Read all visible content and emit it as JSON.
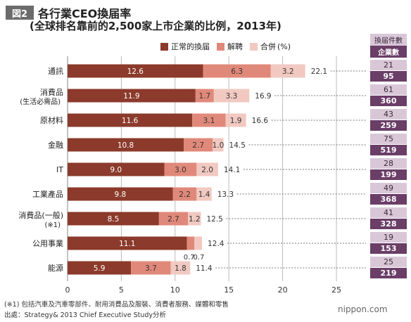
{
  "figure": {
    "badge": "図2",
    "title": "各行業CEO換届率",
    "subtitle": "(全球排名靠前的2,500家上市企業的比例，2013年)"
  },
  "legend": {
    "items": [
      "正常的換届",
      "解聘",
      "合併"
    ],
    "unit": "(%)"
  },
  "side_header": {
    "line1": "換届件數",
    "line2": "企業數"
  },
  "footnote": "(※1) 包括汽車及汽車零部件、耐用消費品及服裝、消費者服務、媒體和零售",
  "source": "出處：Strategy& 2013 Chief Executive Study分析",
  "logo": "nippon.com",
  "colors": {
    "normal": "#8b3a2b",
    "dismissal": "#e0897a",
    "merger": "#f1c9c1",
    "count_top": "#d9c7d8",
    "count_bottom": "#6a3e67"
  },
  "chart_data": {
    "type": "bar",
    "orientation": "horizontal",
    "stacked": true,
    "categories": [
      [
        "通訊"
      ],
      [
        "消費品",
        "(生活必需品)"
      ],
      [
        "原材料"
      ],
      [
        "金融"
      ],
      [
        "IT"
      ],
      [
        "工業產品"
      ],
      [
        "消費品(一般)",
        "(※1)"
      ],
      [
        "公用事業"
      ],
      [
        "能源"
      ]
    ],
    "series": [
      {
        "name": "正常的換届",
        "values": [
          12.6,
          11.9,
          11.6,
          10.8,
          9.0,
          9.8,
          8.5,
          11.1,
          5.9
        ]
      },
      {
        "name": "解聘",
        "values": [
          6.3,
          1.7,
          3.1,
          2.7,
          3.0,
          2.2,
          2.7,
          0.7,
          3.7
        ]
      },
      {
        "name": "合併",
        "values": [
          3.2,
          3.3,
          1.9,
          1.0,
          2.0,
          1.4,
          1.2,
          0.7,
          1.8
        ]
      }
    ],
    "value_labels": [
      [
        "12.6",
        "6.3",
        "3.2"
      ],
      [
        "11.9",
        "1.7",
        "3.3"
      ],
      [
        "11.6",
        "3.1",
        "1.9"
      ],
      [
        "10.8",
        "2.7",
        "1.0"
      ],
      [
        "9.0",
        "3.0",
        "2.0"
      ],
      [
        "9.8",
        "2.2",
        "1.4"
      ],
      [
        "8.5",
        "2.7",
        "1.2"
      ],
      [
        "11.1",
        "0.7",
        "0.7"
      ],
      [
        "5.9",
        "3.7",
        "1.8"
      ]
    ],
    "totals": [
      "22.1",
      "16.9",
      "16.6",
      "14.5",
      "14.1",
      "13.3",
      "12.5",
      "12.4",
      "11.4"
    ],
    "succession_counts": [
      "21",
      "61",
      "43",
      "75",
      "28",
      "49",
      "41",
      "19",
      "25"
    ],
    "company_counts": [
      "95",
      "360",
      "259",
      "519",
      "199",
      "368",
      "328",
      "153",
      "219"
    ],
    "xlim": [
      0,
      25
    ],
    "xticks": [
      "0",
      "5",
      "10",
      "15",
      "20",
      "25"
    ],
    "grid": true
  }
}
